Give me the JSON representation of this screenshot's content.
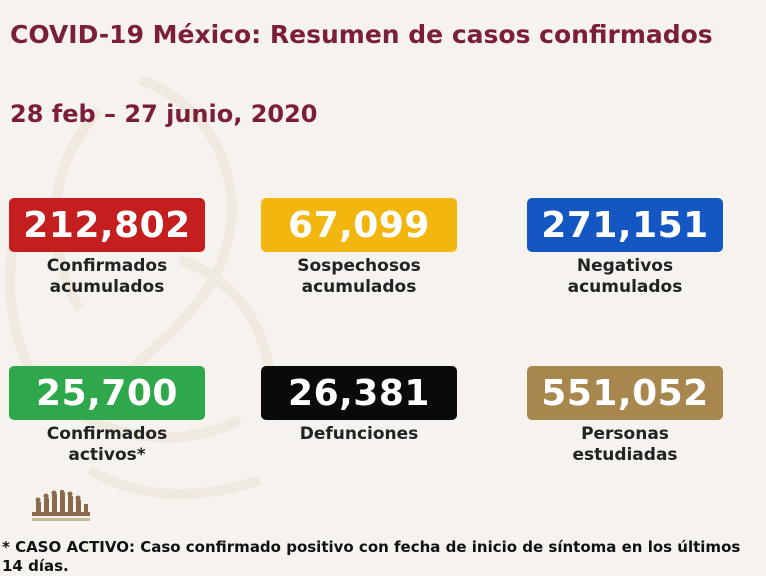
{
  "title": "COVID-19 México: Resumen de casos confirmados",
  "subtitle": "28 feb – 27 junio, 2020",
  "stats": [
    {
      "value": "212,802",
      "label_line1": "Confirmados",
      "label_line2": "acumulados",
      "color": "#c41e1e"
    },
    {
      "value": "67,099",
      "label_line1": "Sospechosos",
      "label_line2": "acumulados",
      "color": "#f3b60f"
    },
    {
      "value": "271,151",
      "label_line1": "Negativos",
      "label_line2": "acumulados",
      "color": "#1557c2"
    },
    {
      "value": "25,700",
      "label_line1": "Confirmados",
      "label_line2": "activos*",
      "color": "#2ea84a"
    },
    {
      "value": "26,381",
      "label_line1": "Defunciones",
      "label_line2": "",
      "color": "#0a0a0a"
    },
    {
      "value": "551,052",
      "label_line1": "Personas",
      "label_line2": "estudiadas",
      "color": "#a8874f"
    }
  ],
  "footnote": "* CASO ACTIVO: Caso confirmado positivo con fecha de inicio de síntoma en los últimos 14 días.",
  "colors": {
    "title": "#7b1e3a",
    "background": "#f6f3ee"
  }
}
